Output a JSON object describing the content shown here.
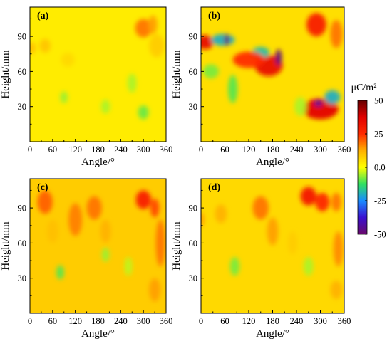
{
  "chart_data": {
    "type": "heatmap",
    "shared": {
      "xlabel": "Angle/°",
      "ylabel": "Height/mm",
      "x_ticks": [
        0,
        60,
        120,
        180,
        240,
        300,
        360
      ],
      "y_ticks": [
        30,
        60,
        90
      ],
      "xlim": [
        0,
        360
      ],
      "ylim": [
        0,
        115
      ]
    },
    "colorbar": {
      "label": "μC/m²",
      "ticks": [
        50,
        25,
        0.0,
        -25,
        -50
      ],
      "tick_labels": [
        "50",
        "25",
        "0.0",
        "-25",
        "-50"
      ],
      "vmin": -50,
      "vmax": 50,
      "colors": [
        "#6a0a6a",
        "#3a10d0",
        "#1a8cff",
        "#30e060",
        "#ffff00",
        "#ffb000",
        "#ff2a00",
        "#e00000",
        "#660000"
      ]
    },
    "panels": [
      {
        "label": "(a)",
        "background": 3,
        "blobs": [
          {
            "x": 300,
            "y": 97,
            "rx": 22,
            "ry": 8,
            "v": 18
          },
          {
            "x": 325,
            "y": 100,
            "rx": 12,
            "ry": 8,
            "v": 14
          },
          {
            "x": 40,
            "y": 82,
            "rx": 15,
            "ry": 6,
            "v": 9
          },
          {
            "x": 5,
            "y": 80,
            "rx": 10,
            "ry": 5,
            "v": 10
          },
          {
            "x": 335,
            "y": 82,
            "rx": 20,
            "ry": 10,
            "v": 8
          },
          {
            "x": 100,
            "y": 70,
            "rx": 18,
            "ry": 6,
            "v": 6
          },
          {
            "x": 300,
            "y": 25,
            "rx": 14,
            "ry": 6,
            "v": -9
          },
          {
            "x": 90,
            "y": 38,
            "rx": 10,
            "ry": 5,
            "v": -6
          },
          {
            "x": 200,
            "y": 30,
            "rx": 12,
            "ry": 6,
            "v": -5
          },
          {
            "x": 270,
            "y": 50,
            "rx": 12,
            "ry": 8,
            "v": -5
          }
        ]
      },
      {
        "label": "(b)",
        "background": 5,
        "blobs": [
          {
            "x": 10,
            "y": 85,
            "rx": 22,
            "ry": 6,
            "v": 35
          },
          {
            "x": 55,
            "y": 87,
            "rx": 30,
            "ry": 5,
            "v": -20
          },
          {
            "x": 65,
            "y": 87,
            "rx": 6,
            "ry": 5,
            "v": -50
          },
          {
            "x": 170,
            "y": 65,
            "rx": 35,
            "ry": 9,
            "v": 34
          },
          {
            "x": 195,
            "y": 72,
            "rx": 8,
            "ry": 7,
            "v": -48
          },
          {
            "x": 150,
            "y": 76,
            "rx": 22,
            "ry": 5,
            "v": -18
          },
          {
            "x": 120,
            "y": 70,
            "rx": 40,
            "ry": 7,
            "v": 25
          },
          {
            "x": 300,
            "y": 28,
            "rx": 45,
            "ry": 9,
            "v": 36
          },
          {
            "x": 295,
            "y": 33,
            "rx": 10,
            "ry": 3,
            "v": -45
          },
          {
            "x": 330,
            "y": 38,
            "rx": 20,
            "ry": 6,
            "v": -20
          },
          {
            "x": 290,
            "y": 100,
            "rx": 25,
            "ry": 10,
            "v": 28
          },
          {
            "x": 340,
            "y": 92,
            "rx": 15,
            "ry": 12,
            "v": 18
          },
          {
            "x": 25,
            "y": 60,
            "rx": 20,
            "ry": 6,
            "v": -8
          },
          {
            "x": 80,
            "y": 45,
            "rx": 12,
            "ry": 12,
            "v": -10
          },
          {
            "x": 250,
            "y": 30,
            "rx": 15,
            "ry": 8,
            "v": -5
          }
        ]
      },
      {
        "label": "(c)",
        "background": 8,
        "blobs": [
          {
            "x": 300,
            "y": 97,
            "rx": 20,
            "ry": 8,
            "v": 28
          },
          {
            "x": 330,
            "y": 90,
            "rx": 12,
            "ry": 8,
            "v": 22
          },
          {
            "x": 40,
            "y": 95,
            "rx": 20,
            "ry": 10,
            "v": 20
          },
          {
            "x": 120,
            "y": 80,
            "rx": 18,
            "ry": 14,
            "v": 17
          },
          {
            "x": 170,
            "y": 90,
            "rx": 20,
            "ry": 10,
            "v": 18
          },
          {
            "x": 345,
            "y": 60,
            "rx": 12,
            "ry": 20,
            "v": 18
          },
          {
            "x": 200,
            "y": 70,
            "rx": 14,
            "ry": 10,
            "v": 12
          },
          {
            "x": 60,
            "y": 70,
            "rx": 15,
            "ry": 10,
            "v": 10
          },
          {
            "x": 330,
            "y": 20,
            "rx": 15,
            "ry": 10,
            "v": 14
          },
          {
            "x": 80,
            "y": 35,
            "rx": 10,
            "ry": 6,
            "v": -10
          },
          {
            "x": 200,
            "y": 50,
            "rx": 10,
            "ry": 6,
            "v": -6
          },
          {
            "x": 260,
            "y": 40,
            "rx": 10,
            "ry": 8,
            "v": -4
          }
        ]
      },
      {
        "label": "(d)",
        "background": 6,
        "blobs": [
          {
            "x": 270,
            "y": 100,
            "rx": 20,
            "ry": 8,
            "v": 30
          },
          {
            "x": 305,
            "y": 95,
            "rx": 18,
            "ry": 8,
            "v": 26
          },
          {
            "x": 340,
            "y": 95,
            "rx": 12,
            "ry": 8,
            "v": 18
          },
          {
            "x": 150,
            "y": 90,
            "rx": 20,
            "ry": 10,
            "v": 18
          },
          {
            "x": 180,
            "y": 70,
            "rx": 14,
            "ry": 12,
            "v": 14
          },
          {
            "x": 50,
            "y": 85,
            "rx": 15,
            "ry": 8,
            "v": 12
          },
          {
            "x": 0,
            "y": 80,
            "rx": 8,
            "ry": 6,
            "v": 14
          },
          {
            "x": 345,
            "y": 55,
            "rx": 12,
            "ry": 15,
            "v": 16
          },
          {
            "x": 340,
            "y": 20,
            "rx": 15,
            "ry": 8,
            "v": 12
          },
          {
            "x": 230,
            "y": 60,
            "rx": 12,
            "ry": 10,
            "v": 8
          },
          {
            "x": 85,
            "y": 40,
            "rx": 12,
            "ry": 8,
            "v": -8
          },
          {
            "x": 270,
            "y": 40,
            "rx": 12,
            "ry": 8,
            "v": -5
          }
        ]
      }
    ]
  }
}
